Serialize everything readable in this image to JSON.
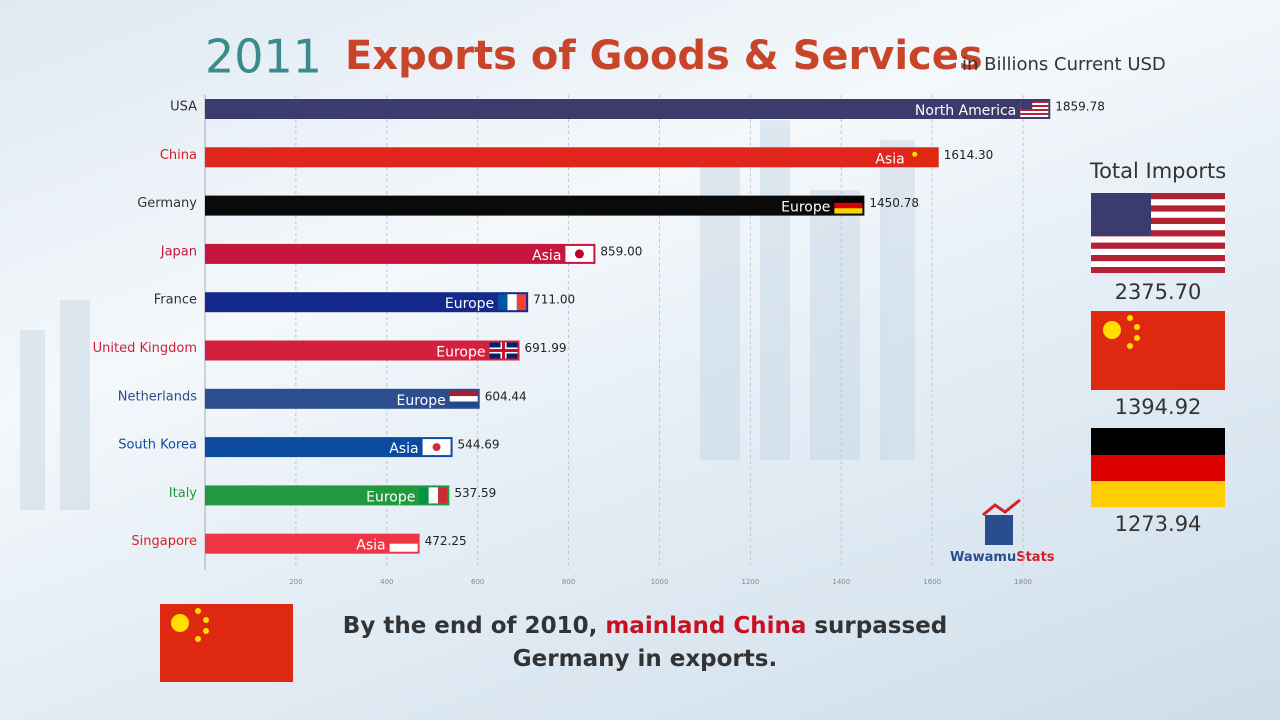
{
  "chart_data": {
    "type": "bar",
    "orientation": "horizontal",
    "year": "2011",
    "title": "Exports of Goods & Services",
    "subtitle": "in Billions Current USD",
    "categories": [
      "USA",
      "China",
      "Germany",
      "Japan",
      "France",
      "United Kingdom",
      "Netherlands",
      "South Korea",
      "Italy",
      "Singapore"
    ],
    "values": [
      1859.78,
      1614.3,
      1450.78,
      859.0,
      711.0,
      691.99,
      604.44,
      544.69,
      537.59,
      472.25
    ],
    "value_labels": [
      "1859.78",
      "1614.30",
      "1450.78",
      "859.00",
      "711.00",
      "691.99",
      "604.44",
      "544.69",
      "537.59",
      "472.25"
    ],
    "regions": [
      "North America",
      "Asia",
      "Europe",
      "Asia",
      "Europe",
      "Europe",
      "Europe",
      "Asia",
      "Europe",
      "Asia"
    ],
    "colors": [
      "#3b3b6d",
      "#e0261a",
      "#0a0a0a",
      "#c5163d",
      "#13298c",
      "#d3203c",
      "#2c4d8e",
      "#0d4b9f",
      "#22993f",
      "#ee3445"
    ],
    "label_colors": [
      "#333333",
      "#d61f26",
      "#333333",
      "#c5163d",
      "#333333",
      "#d3203c",
      "#2c4d8e",
      "#0d4b9f",
      "#22993f",
      "#d61f26"
    ],
    "xlim": [
      0,
      1900
    ],
    "xticks": [
      200,
      400,
      600,
      800,
      1000,
      1200,
      1400,
      1600,
      1800
    ],
    "grid": true
  },
  "imports": {
    "title": "Total Imports",
    "values": [
      2375.7,
      1394.92,
      1273.94
    ],
    "value_labels": [
      "2375.70",
      "1394.92",
      "1273.94"
    ]
  },
  "logo": {
    "first": "Wawamu",
    "second": "Stats"
  },
  "caption": {
    "before": "By the end of 2010, ",
    "highlight": "mainland China",
    "after": " surpassed Germany in exports."
  }
}
